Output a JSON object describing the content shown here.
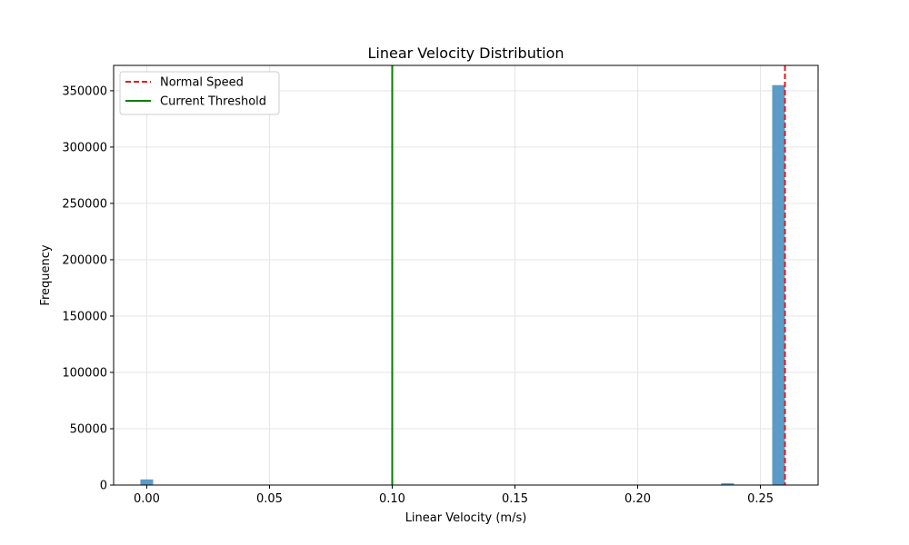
{
  "chart_data": {
    "type": "bar",
    "title": "Linear Velocity Distribution",
    "xlabel": "Linear Velocity (m/s)",
    "ylabel": "Frequency",
    "xlim": [
      -0.0135,
      0.2735
    ],
    "ylim": [
      0,
      372500
    ],
    "xticks": [
      0.0,
      0.05,
      0.1,
      0.15,
      0.2,
      0.25
    ],
    "xtick_labels": [
      "0.00",
      "0.05",
      "0.10",
      "0.15",
      "0.20",
      "0.25"
    ],
    "yticks": [
      0,
      50000,
      100000,
      150000,
      200000,
      250000,
      300000,
      350000
    ],
    "ytick_labels": [
      "0",
      "50000",
      "100000",
      "150000",
      "200000",
      "250000",
      "300000",
      "350000"
    ],
    "grid": true,
    "bin_width": 0.0052,
    "bars": [
      {
        "x": 0.0,
        "value": 5000
      },
      {
        "x": 0.0806,
        "value": 400
      },
      {
        "x": 0.1066,
        "value": 400
      },
      {
        "x": 0.1326,
        "value": 400
      },
      {
        "x": 0.1586,
        "value": 400
      },
      {
        "x": 0.1846,
        "value": 400
      },
      {
        "x": 0.2106,
        "value": 400
      },
      {
        "x": 0.2366,
        "value": 1600
      },
      {
        "x": 0.2574,
        "value": 355000
      }
    ],
    "bar_color": "#5b9bc7",
    "reference_lines": [
      {
        "label": "Normal Speed",
        "x": 0.26,
        "style": "dashed",
        "color": "#e31a1c"
      },
      {
        "label": "Current Threshold",
        "x": 0.1,
        "style": "solid",
        "color": "#008000"
      }
    ],
    "legend_position": "top-left"
  }
}
